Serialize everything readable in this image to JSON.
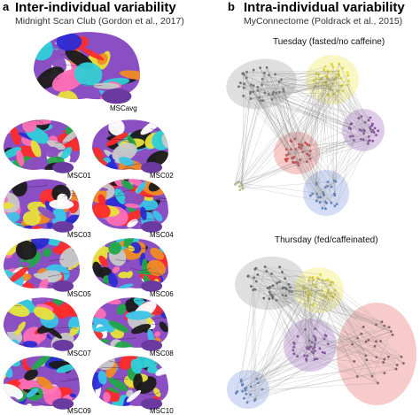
{
  "panel_a": {
    "letter": "a",
    "title": "Inter-individual variability",
    "subtitle": "Midnight Scan Club (Gordon et al., 2017)",
    "brain_labels": [
      "MSCavg",
      "MSC01",
      "MSC02",
      "MSC03",
      "MSC04",
      "MSC05",
      "MSC06",
      "MSC07",
      "MSC08",
      "MSC09",
      "MSC10"
    ]
  },
  "panel_b": {
    "letter": "b",
    "title": "Intra-individual variability",
    "subtitle": "MyConnectome (Poldrack et al., 2015)",
    "graph_top_label": "Tuesday (fasted/no caffeine)",
    "graph_bottom_label": "Thursday (fed/caffeinated)"
  },
  "colors": {
    "network_gray": "#b8b8b8",
    "network_yellow": "#f2ee7a",
    "network_purple": "#b98fd0",
    "network_red": "#ef8c8c",
    "network_blue": "#9fb3e8",
    "cortex_base": "#8a4fc2"
  }
}
